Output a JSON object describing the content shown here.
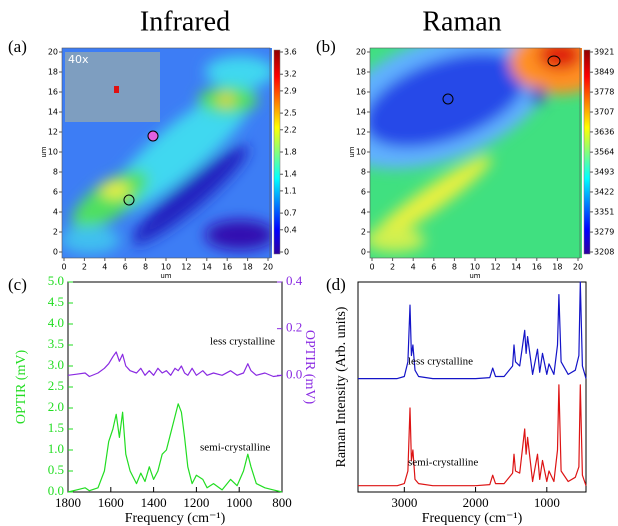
{
  "chart_data": [
    {
      "type": "heatmap",
      "title": "Infrared",
      "panel_label": "(a)",
      "inset_label": "40x",
      "xlabel": "um",
      "ylabel": "um",
      "xlim": [
        0,
        20
      ],
      "ylim": [
        0,
        20
      ],
      "xticks": [
        0,
        2,
        4,
        6,
        8,
        10,
        12,
        14,
        16,
        18,
        20
      ],
      "yticks": [
        0,
        2,
        4,
        6,
        8,
        10,
        12,
        14,
        16,
        18,
        20
      ],
      "colormap": "jet",
      "colorbar_lim": [
        0,
        3.6
      ],
      "colorbar_ticks": [
        0,
        0.4,
        0.7,
        1.1,
        1.4,
        1.8,
        2.2,
        2.5,
        2.9,
        3.2,
        3.6
      ]
    },
    {
      "type": "heatmap",
      "title": "Raman",
      "panel_label": "(b)",
      "xlabel": "um",
      "ylabel": "um",
      "xlim": [
        0,
        20
      ],
      "ylim": [
        0,
        20
      ],
      "xticks": [
        0,
        2,
        4,
        6,
        8,
        10,
        12,
        14,
        16,
        18,
        20
      ],
      "yticks": [
        0,
        2,
        4,
        6,
        8,
        10,
        12,
        14,
        16,
        18,
        20
      ],
      "colormap": "jet",
      "colorbar_lim": [
        3208,
        3921
      ],
      "colorbar_ticks": [
        3208,
        3279,
        3351,
        3422,
        3493,
        3564,
        3636,
        3707,
        3778,
        3849,
        3921
      ]
    },
    {
      "type": "line",
      "panel_label": "(c)",
      "xlabel": "Frequency (cm⁻¹)",
      "ylabel": "OPTIR (mV)",
      "y2label": "OPTIR (mV)",
      "annotations": [
        "less crystalline",
        "semi-crystalline"
      ],
      "xlim": [
        1800,
        800
      ],
      "xticks": [
        1800,
        1600,
        1400,
        1200,
        1000,
        800
      ],
      "ylim": [
        0,
        5
      ],
      "yticks": [
        {
          "value": 0,
          "label": "0.0"
        },
        0.5,
        {
          "value": 1,
          "label": "1.0"
        },
        1.5,
        {
          "value": 2,
          "label": "2.0"
        },
        2.5,
        {
          "value": 3,
          "label": "3.0"
        },
        3.5,
        {
          "value": 4,
          "label": "4.0"
        },
        4.5,
        {
          "value": 5,
          "label": "5.0"
        }
      ],
      "y2lim": [
        -0.5,
        0.4
      ],
      "y2ticks": [
        {
          "value": 0,
          "label": "0.0"
        },
        0.2,
        0.4
      ],
      "x": [
        1800,
        1760,
        1720,
        1700,
        1660,
        1630,
        1610,
        1590,
        1575,
        1560,
        1545,
        1530,
        1510,
        1480,
        1460,
        1440,
        1420,
        1400,
        1380,
        1360,
        1340,
        1320,
        1300,
        1285,
        1270,
        1255,
        1240,
        1220,
        1200,
        1170,
        1150,
        1120,
        1080,
        1040,
        1010,
        980,
        960,
        945,
        920,
        880,
        840,
        800
      ],
      "series": [
        {
          "color": "#8a2be2",
          "axis": "y2",
          "values": [
            0,
            0.005,
            0.01,
            -0.005,
            0.01,
            0.03,
            0.05,
            0.08,
            0.1,
            0.06,
            0.09,
            0.04,
            0.02,
            0.01,
            0.03,
            0.0,
            0.02,
            0.0,
            0.03,
            0.01,
            0.02,
            0.0,
            0.03,
            0.02,
            0.04,
            0.01,
            0.0,
            0.03,
            0.0,
            0.02,
            0.0,
            0.01,
            0.0,
            0.02,
            0.0,
            0.01,
            0.05,
            0.02,
            0.0,
            0.01,
            -0.005,
            0
          ]
        },
        {
          "color": "#22dd22",
          "values": [
            0,
            0.05,
            0.1,
            0.03,
            0.1,
            0.5,
            1.2,
            1.5,
            1.85,
            1.3,
            1.9,
            0.9,
            0.5,
            0.2,
            0.45,
            0.25,
            0.6,
            0.3,
            0.5,
            0.9,
            1.0,
            1.4,
            1.8,
            2.1,
            1.9,
            1.3,
            0.6,
            0.2,
            0.4,
            0.3,
            0.1,
            0.2,
            0.05,
            0.3,
            0.15,
            0.5,
            0.9,
            0.6,
            0.2,
            0.1,
            0.05,
            0
          ]
        }
      ]
    },
    {
      "type": "line",
      "panel_label": "(d)",
      "xlabel": "Frequency (cm⁻¹)",
      "ylabel": "Raman Intensity (Arb. units)",
      "annotations": [
        "less crystalline",
        "semi-crystalline"
      ],
      "xlim": [
        3650,
        450
      ],
      "xticks": [
        3000,
        2000,
        1000
      ],
      "ylim": [
        0,
        10
      ],
      "x": [
        3650,
        3100,
        3000,
        2950,
        2920,
        2900,
        2880,
        2850,
        2800,
        2600,
        2000,
        1800,
        1760,
        1720,
        1600,
        1480,
        1460,
        1440,
        1380,
        1310,
        1290,
        1270,
        1200,
        1130,
        1100,
        1060,
        1000,
        970,
        900,
        850,
        830,
        800,
        700,
        600,
        550,
        530,
        500,
        450
      ],
      "series": [
        {
          "color": "#1414c8",
          "values": [
            5.4,
            5.4,
            5.5,
            6.2,
            8.9,
            6.5,
            7.0,
            5.8,
            5.5,
            5.4,
            5.4,
            5.45,
            5.9,
            5.5,
            5.5,
            6.0,
            7.0,
            6.2,
            6.0,
            7.7,
            6.6,
            7.4,
            5.6,
            6.8,
            5.7,
            6.6,
            5.6,
            6.1,
            5.6,
            7.0,
            9.4,
            6.2,
            5.6,
            5.8,
            6.5,
            10,
            6.0,
            5.4
          ]
        },
        {
          "color": "#dd1414",
          "values": [
            0.3,
            0.3,
            0.4,
            1.0,
            4.0,
            1.5,
            2.0,
            0.6,
            0.4,
            0.3,
            0.3,
            0.35,
            0.8,
            0.4,
            0.4,
            0.9,
            1.8,
            1.0,
            0.9,
            3.0,
            1.8,
            2.6,
            0.5,
            1.8,
            0.6,
            1.5,
            0.5,
            1.0,
            0.5,
            2.0,
            5.1,
            1.0,
            0.5,
            0.7,
            1.2,
            5.1,
            0.8,
            0.3
          ]
        }
      ]
    }
  ]
}
